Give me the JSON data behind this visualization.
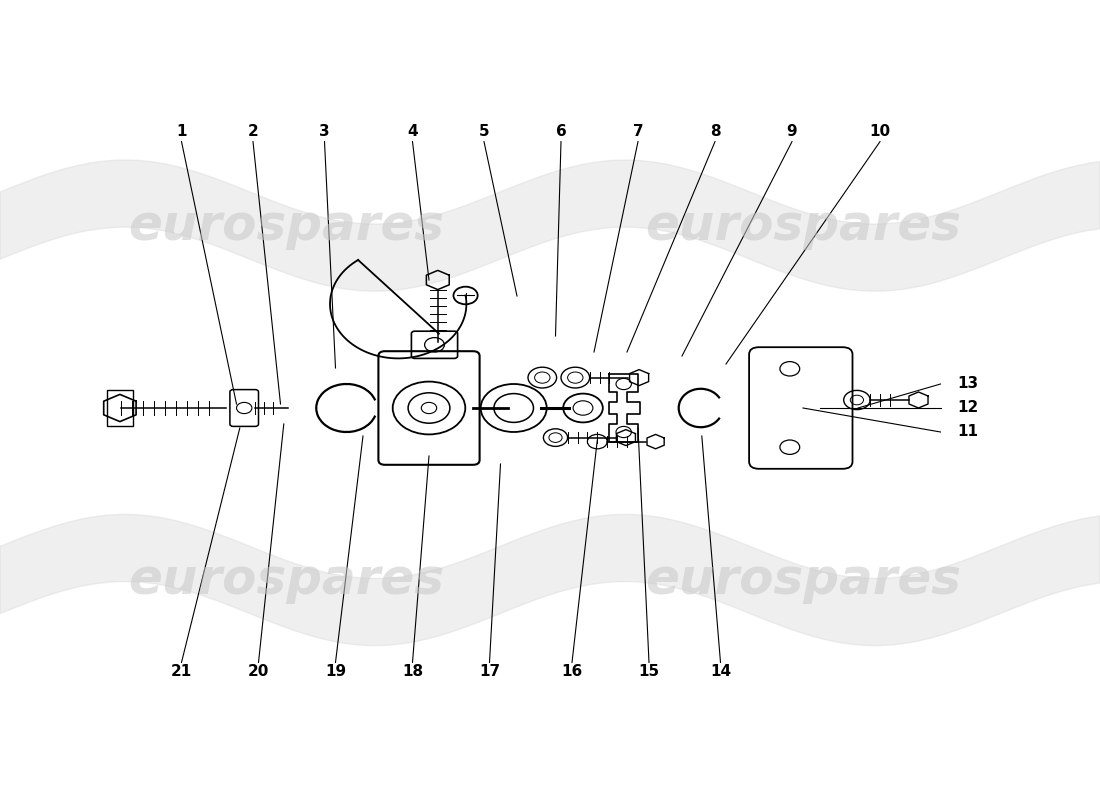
{
  "bg_color": "#ffffff",
  "line_color": "#000000",
  "label_color": "#000000",
  "watermark_text": "eurospares",
  "watermark_color": "#c8c8c8",
  "fig_width": 11.0,
  "fig_height": 8.0,
  "top_leaders": {
    "1": [
      0.165,
      0.835,
      0.215,
      0.495
    ],
    "2": [
      0.23,
      0.835,
      0.255,
      0.495
    ],
    "3": [
      0.295,
      0.835,
      0.305,
      0.54
    ],
    "4": [
      0.375,
      0.835,
      0.39,
      0.65
    ],
    "5": [
      0.44,
      0.835,
      0.47,
      0.63
    ],
    "6": [
      0.51,
      0.835,
      0.505,
      0.58
    ],
    "7": [
      0.58,
      0.835,
      0.54,
      0.56
    ],
    "8": [
      0.65,
      0.835,
      0.57,
      0.56
    ],
    "9": [
      0.72,
      0.835,
      0.62,
      0.555
    ],
    "10": [
      0.8,
      0.835,
      0.66,
      0.545
    ]
  },
  "bottom_leaders": {
    "21": [
      0.165,
      0.16,
      0.218,
      0.465
    ],
    "20": [
      0.235,
      0.16,
      0.258,
      0.47
    ],
    "19": [
      0.305,
      0.16,
      0.33,
      0.455
    ],
    "18": [
      0.375,
      0.16,
      0.39,
      0.43
    ],
    "17": [
      0.445,
      0.16,
      0.455,
      0.42
    ],
    "16": [
      0.52,
      0.16,
      0.543,
      0.45
    ],
    "15": [
      0.59,
      0.16,
      0.58,
      0.465
    ],
    "14": [
      0.655,
      0.16,
      0.638,
      0.455
    ]
  },
  "right_leaders": {
    "11": [
      0.87,
      0.46,
      0.73,
      0.49
    ],
    "12": [
      0.87,
      0.49,
      0.745,
      0.49
    ],
    "13": [
      0.87,
      0.52,
      0.78,
      0.49
    ]
  }
}
